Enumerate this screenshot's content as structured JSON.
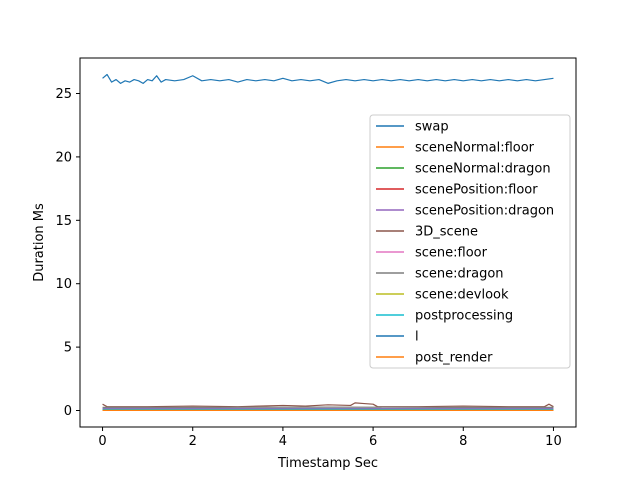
{
  "chart_data": {
    "type": "line",
    "title": "",
    "xlabel": "Timestamp Sec",
    "ylabel": "Duration Ms",
    "xlim": [
      -0.5,
      10.5
    ],
    "ylim": [
      -1.3,
      27.8
    ],
    "xticks": [
      0,
      2,
      4,
      6,
      8,
      10
    ],
    "yticks": [
      0,
      5,
      10,
      15,
      20,
      25
    ],
    "xtick_labels": [
      "0",
      "2",
      "4",
      "6",
      "8",
      "10"
    ],
    "ytick_labels": [
      "0",
      "5",
      "10",
      "15",
      "20",
      "25"
    ],
    "grid": false,
    "legend_position": "center-right",
    "series": [
      {
        "name": "swap",
        "color": "#1f77b4",
        "points": [
          [
            0.0,
            26.2
          ],
          [
            0.1,
            26.5
          ],
          [
            0.2,
            25.9
          ],
          [
            0.3,
            26.1
          ],
          [
            0.4,
            25.8
          ],
          [
            0.5,
            26.0
          ],
          [
            0.6,
            25.9
          ],
          [
            0.7,
            26.1
          ],
          [
            0.8,
            26.0
          ],
          [
            0.9,
            25.8
          ],
          [
            1.0,
            26.1
          ],
          [
            1.1,
            26.0
          ],
          [
            1.2,
            26.4
          ],
          [
            1.3,
            25.9
          ],
          [
            1.4,
            26.1
          ],
          [
            1.6,
            26.0
          ],
          [
            1.8,
            26.1
          ],
          [
            2.0,
            26.4
          ],
          [
            2.2,
            26.0
          ],
          [
            2.4,
            26.1
          ],
          [
            2.6,
            26.0
          ],
          [
            2.8,
            26.1
          ],
          [
            3.0,
            25.9
          ],
          [
            3.2,
            26.1
          ],
          [
            3.4,
            26.0
          ],
          [
            3.6,
            26.1
          ],
          [
            3.8,
            26.0
          ],
          [
            4.0,
            26.2
          ],
          [
            4.2,
            26.0
          ],
          [
            4.4,
            26.1
          ],
          [
            4.6,
            26.0
          ],
          [
            4.8,
            26.1
          ],
          [
            5.0,
            25.8
          ],
          [
            5.2,
            26.0
          ],
          [
            5.4,
            26.1
          ],
          [
            5.6,
            26.0
          ],
          [
            5.8,
            26.1
          ],
          [
            6.0,
            26.0
          ],
          [
            6.2,
            26.1
          ],
          [
            6.4,
            26.0
          ],
          [
            6.6,
            26.1
          ],
          [
            6.8,
            26.0
          ],
          [
            7.0,
            26.1
          ],
          [
            7.2,
            26.0
          ],
          [
            7.4,
            26.1
          ],
          [
            7.6,
            26.0
          ],
          [
            7.8,
            26.1
          ],
          [
            8.0,
            26.0
          ],
          [
            8.2,
            26.1
          ],
          [
            8.4,
            26.0
          ],
          [
            8.6,
            26.1
          ],
          [
            8.8,
            26.0
          ],
          [
            9.0,
            26.1
          ],
          [
            9.2,
            26.0
          ],
          [
            9.4,
            26.1
          ],
          [
            9.6,
            26.0
          ],
          [
            9.8,
            26.1
          ],
          [
            10.0,
            26.2
          ]
        ]
      },
      {
        "name": "sceneNormal:floor",
        "color": "#ff7f0e",
        "points": [
          [
            0.0,
            0.02
          ],
          [
            2.5,
            0.02
          ],
          [
            5.0,
            0.03
          ],
          [
            7.5,
            0.02
          ],
          [
            10.0,
            0.02
          ]
        ]
      },
      {
        "name": "sceneNormal:dragon",
        "color": "#2ca02c",
        "points": [
          [
            0.0,
            0.1
          ],
          [
            2.5,
            0.1
          ],
          [
            5.0,
            0.12
          ],
          [
            7.5,
            0.1
          ],
          [
            10.0,
            0.1
          ]
        ]
      },
      {
        "name": "scenePosition:floor",
        "color": "#d62728",
        "points": [
          [
            0.0,
            0.03
          ],
          [
            2.5,
            0.03
          ],
          [
            5.0,
            0.04
          ],
          [
            7.5,
            0.03
          ],
          [
            10.0,
            0.03
          ]
        ]
      },
      {
        "name": "scenePosition:dragon",
        "color": "#9467bd",
        "points": [
          [
            0.0,
            0.15
          ],
          [
            2.5,
            0.15
          ],
          [
            5.0,
            0.16
          ],
          [
            7.5,
            0.15
          ],
          [
            10.0,
            0.15
          ]
        ]
      },
      {
        "name": "3D_scene",
        "color": "#8c564b",
        "points": [
          [
            0.0,
            0.5
          ],
          [
            0.1,
            0.3
          ],
          [
            0.4,
            0.3
          ],
          [
            1.0,
            0.3
          ],
          [
            2.0,
            0.35
          ],
          [
            3.0,
            0.3
          ],
          [
            4.0,
            0.4
          ],
          [
            4.5,
            0.35
          ],
          [
            5.0,
            0.45
          ],
          [
            5.5,
            0.4
          ],
          [
            5.6,
            0.6
          ],
          [
            5.8,
            0.55
          ],
          [
            6.0,
            0.5
          ],
          [
            6.1,
            0.3
          ],
          [
            7.0,
            0.3
          ],
          [
            8.0,
            0.35
          ],
          [
            9.0,
            0.3
          ],
          [
            9.8,
            0.3
          ],
          [
            9.9,
            0.5
          ],
          [
            10.0,
            0.3
          ]
        ]
      },
      {
        "name": "scene:floor",
        "color": "#e377c2",
        "points": [
          [
            0.0,
            0.05
          ],
          [
            2.5,
            0.05
          ],
          [
            5.0,
            0.06
          ],
          [
            7.5,
            0.05
          ],
          [
            10.0,
            0.05
          ]
        ]
      },
      {
        "name": "scene:dragon",
        "color": "#7f7f7f",
        "points": [
          [
            0.0,
            0.25
          ],
          [
            2.5,
            0.25
          ],
          [
            5.0,
            0.27
          ],
          [
            7.5,
            0.25
          ],
          [
            10.0,
            0.25
          ]
        ]
      },
      {
        "name": "scene:devlook",
        "color": "#bcbd22",
        "points": [
          [
            0.0,
            0.05
          ],
          [
            2.5,
            0.05
          ],
          [
            5.0,
            0.05
          ],
          [
            7.5,
            0.05
          ],
          [
            10.0,
            0.05
          ]
        ]
      },
      {
        "name": "postprocessing",
        "color": "#17becf",
        "points": [
          [
            0.0,
            0.08
          ],
          [
            2.5,
            0.08
          ],
          [
            5.0,
            0.09
          ],
          [
            7.5,
            0.08
          ],
          [
            10.0,
            0.08
          ]
        ]
      },
      {
        "name": "l",
        "color": "#1f77b4",
        "points": [
          [
            0.0,
            0.01
          ],
          [
            5.0,
            0.01
          ],
          [
            10.0,
            0.01
          ]
        ]
      },
      {
        "name": "post_render",
        "color": "#ff7f0e",
        "points": [
          [
            0.0,
            0.01
          ],
          [
            5.0,
            0.01
          ],
          [
            10.0,
            0.01
          ]
        ]
      }
    ]
  }
}
